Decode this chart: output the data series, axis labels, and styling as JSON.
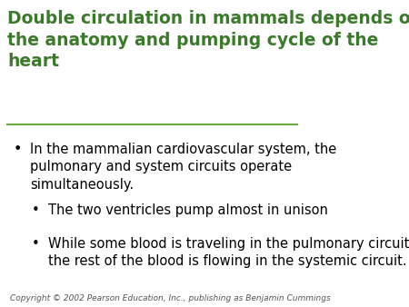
{
  "title": "Double circulation in mammals depends on\nthe anatomy and pumping cycle of the\nheart",
  "title_color": "#3a7a2a",
  "title_fontsize": 13.5,
  "title_fontweight": "bold",
  "background_color": "#ffffff",
  "line_color": "#6aaa3a",
  "bullet1": "In the mammalian cardiovascular system, the\npulmonary and system circuits operate\nsimultaneously.",
  "bullet2": "The two ventricles pump almost in unison",
  "bullet3": "While some blood is traveling in the pulmonary circuit,\nthe rest of the blood is flowing in the systemic circuit.",
  "bullet_fontsize": 10.5,
  "sub_bullet_fontsize": 10.5,
  "copyright": "Copyright © 2002 Pearson Education, Inc., publishing as Benjamin Cummings",
  "copyright_fontsize": 6.5,
  "bullet_dot_color": "#000000",
  "text_color": "#000000"
}
